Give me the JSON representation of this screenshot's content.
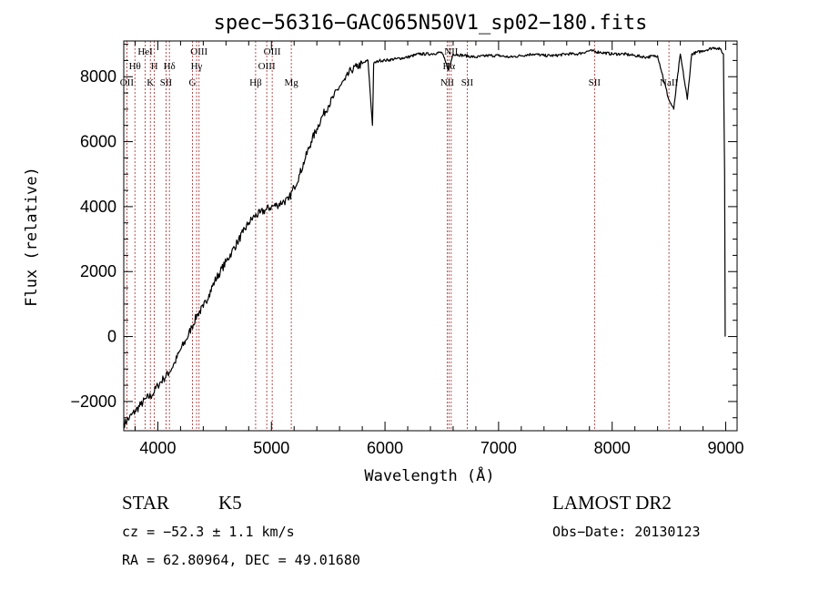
{
  "chart_data": {
    "type": "line",
    "title": "spec−56316−GAC065N50V1_sp02−180.fits",
    "xlabel": "Wavelength (Å)",
    "ylabel": "Flux (relative)",
    "xlim": [
      3700,
      9100
    ],
    "ylim": [
      -2900,
      9100
    ],
    "xticks": [
      {
        "value": 4000,
        "label": "4000"
      },
      {
        "value": 5000,
        "label": "5000"
      },
      {
        "value": 6000,
        "label": "6000"
      },
      {
        "value": 7000,
        "label": "7000"
      },
      {
        "value": 8000,
        "label": "8000"
      },
      {
        "value": 9000,
        "label": "9000"
      }
    ],
    "yticks": [
      {
        "value": -2000,
        "label": "−2000"
      },
      {
        "value": 0,
        "label": "0"
      },
      {
        "value": 2000,
        "label": "2000"
      },
      {
        "value": 4000,
        "label": "4000"
      },
      {
        "value": 6000,
        "label": "6000"
      },
      {
        "value": 8000,
        "label": "8000"
      }
    ],
    "grid": false,
    "series": [
      {
        "x": [
          3700,
          3750,
          3800,
          3850,
          3900,
          3950,
          4000,
          4050,
          4100,
          4150,
          4200,
          4250,
          4300,
          4350,
          4400,
          4450,
          4500,
          4550,
          4600,
          4650,
          4700,
          4750,
          4800,
          4850,
          4900,
          4950,
          5000,
          5050,
          5100,
          5150,
          5200,
          5250,
          5300,
          5350,
          5400,
          5450,
          5500,
          5550,
          5600,
          5650,
          5700,
          5750,
          5800,
          5850,
          5890,
          5900,
          5950,
          6000,
          6100,
          6200,
          6300,
          6400,
          6500,
          6560,
          6600,
          6700,
          6800,
          6900,
          7000,
          7100,
          7200,
          7300,
          7400,
          7500,
          7600,
          7700,
          7800,
          7900,
          8000,
          8100,
          8200,
          8300,
          8400,
          8498,
          8542,
          8600,
          8662,
          8700,
          8800,
          8900,
          8950,
          8980,
          8990,
          8995
        ],
        "values": [
          -2700,
          -2500,
          -2300,
          -2100,
          -1900,
          -1800,
          -1500,
          -1300,
          -1100,
          -800,
          -400,
          -100,
          300,
          700,
          900,
          1300,
          1700,
          2000,
          2300,
          2600,
          2900,
          3200,
          3500,
          3700,
          3800,
          3900,
          4000,
          4050,
          4150,
          4200,
          4600,
          5000,
          5500,
          6000,
          6400,
          6800,
          7100,
          7400,
          7700,
          7900,
          8200,
          8300,
          8400,
          8500,
          6500,
          8400,
          8500,
          8500,
          8550,
          8600,
          8700,
          8700,
          8750,
          8200,
          8700,
          8650,
          8600,
          8650,
          8650,
          8600,
          8650,
          8700,
          8650,
          8650,
          8700,
          8700,
          8800,
          8750,
          8700,
          8700,
          8650,
          8600,
          8650,
          7300,
          7000,
          8700,
          7300,
          8700,
          8800,
          8900,
          8850,
          8700,
          5000,
          0
        ]
      }
    ],
    "spectral_lines": [
      {
        "label": "OII",
        "wavelength": 3727
      },
      {
        "label": "Hθ",
        "wavelength": 3798
      },
      {
        "label": "HeI",
        "wavelength": 3889
      },
      {
        "label": "K",
        "wavelength": 3934
      },
      {
        "label": "H",
        "wavelength": 3969
      },
      {
        "label": "SII",
        "wavelength": 4072
      },
      {
        "label": "Hδ",
        "wavelength": 4102
      },
      {
        "label": "G",
        "wavelength": 4305
      },
      {
        "label": "Hγ",
        "wavelength": 4341
      },
      {
        "label": "OIII",
        "wavelength": 4363
      },
      {
        "label": "Hβ",
        "wavelength": 4861
      },
      {
        "label": "OIII",
        "wavelength": 4959
      },
      {
        "label": "OIII",
        "wavelength": 5007
      },
      {
        "label": "Mg",
        "wavelength": 5175
      },
      {
        "label": "NII",
        "wavelength": 6548
      },
      {
        "label": "Hα",
        "wavelength": 6563
      },
      {
        "label": "NII",
        "wavelength": 6583
      },
      {
        "label": "SII",
        "wavelength": 6724
      },
      {
        "label": "SII",
        "wavelength": 7845
      },
      {
        "label": "NaII",
        "wavelength": 8500
      }
    ]
  },
  "info": {
    "object_class": "STAR",
    "subclass": "K5",
    "survey": "LAMOST DR2",
    "cz": "cz = −52.3 ± 1.1 km/s",
    "obs_date": "Obs−Date: 20130123",
    "coords": "RA =  62.80964, DEC =  49.01680"
  },
  "colors": {
    "spectrum": "#000000",
    "line_markers": "#aa2222",
    "axes": "#000000"
  }
}
